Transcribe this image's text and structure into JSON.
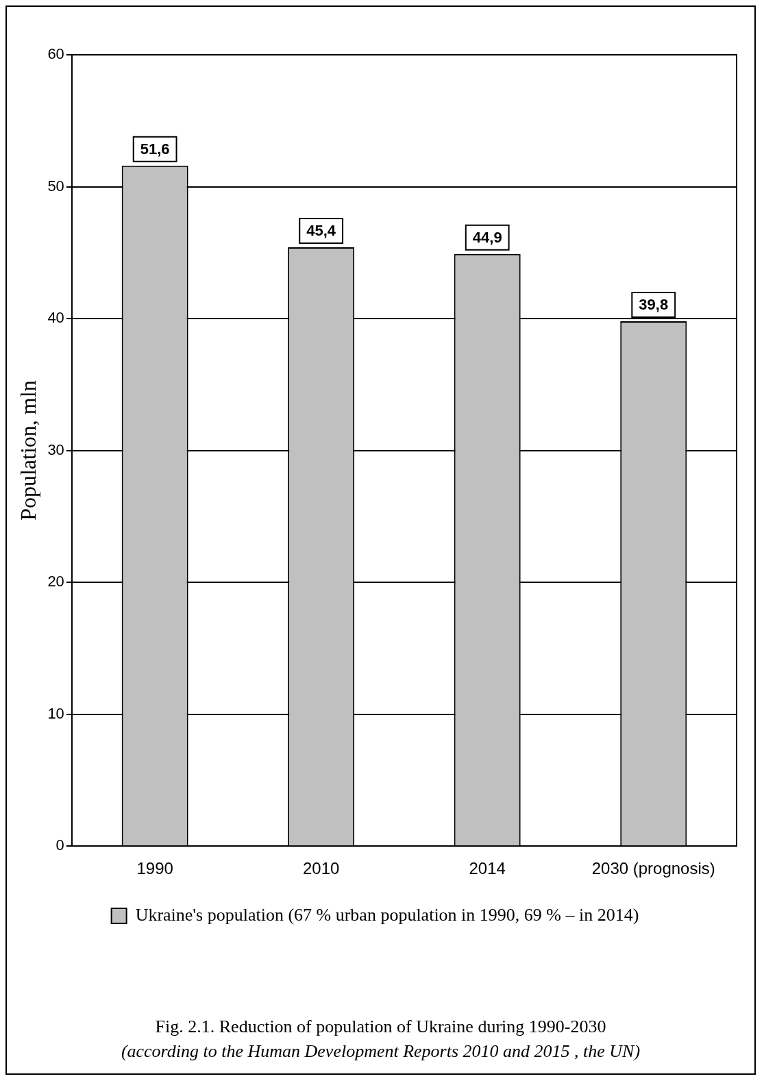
{
  "chart_data": {
    "type": "bar",
    "title": "Fig. 2.1. Reduction of population of Ukraine during 1990-2030",
    "annotations": [
      "(according to the Human Development Reports 2010 and 2015 , the UN)"
    ],
    "ylabel": "Population, mln",
    "categories": [
      "1990",
      "2010",
      "2014",
      "2030 (prognosis)"
    ],
    "series": [
      {
        "name": "Ukraine's population (67 % urban population in 1990, 69 % – in 2014)",
        "color": "#c0c0c0",
        "values": [
          51.6,
          45.4,
          44.9,
          39.8
        ],
        "value_labels": [
          "51,6",
          "45,4",
          "44,9",
          "39,8"
        ]
      }
    ],
    "ylim": [
      0,
      60
    ],
    "yticks": [
      0,
      10,
      20,
      30,
      40,
      50,
      60
    ],
    "grid": "y",
    "legend": "bottom"
  }
}
